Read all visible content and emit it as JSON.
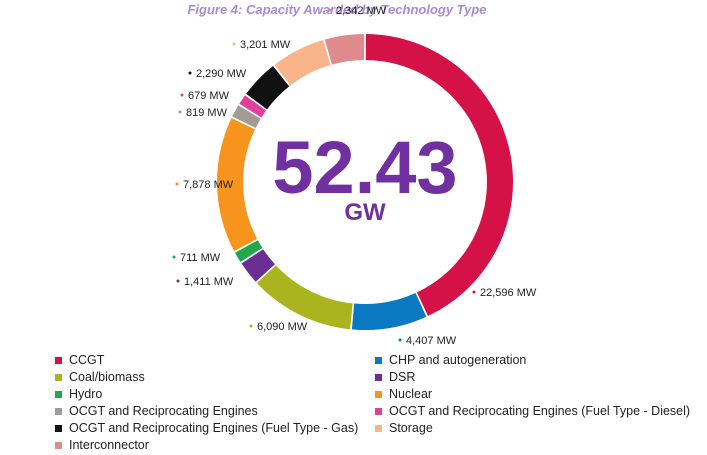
{
  "chart_data": {
    "type": "pie",
    "title": "Figure 4: Capacity Awarded by Technology Type",
    "center_value": "52.43",
    "center_unit": "GW",
    "series": [
      {
        "name": "CCGT",
        "value": 22596,
        "label": "22,596 MW",
        "color": "#d41247"
      },
      {
        "name": "CHP and autogeneration",
        "value": 4407,
        "label": "4,407 MW",
        "color": "#0a78c2"
      },
      {
        "name": "Coal/biomass",
        "value": 6090,
        "label": "6,090 MW",
        "color": "#aab41f"
      },
      {
        "name": "DSR",
        "value": 1411,
        "label": "1,411 MW",
        "color": "#6a2f92"
      },
      {
        "name": "Hydro",
        "value": 711,
        "label": "711 MW",
        "color": "#21a84b"
      },
      {
        "name": "Nuclear",
        "value": 7878,
        "label": "7,878 MW",
        "color": "#f7941d"
      },
      {
        "name": "OCGT and Reciprocating Engines",
        "value": 819,
        "label": "819 MW",
        "color": "#a39a93"
      },
      {
        "name": "OCGT and Reciprocating Engines (Fuel Type - Diesel)",
        "value": 679,
        "label": "679 MW",
        "color": "#e0409a"
      },
      {
        "name": "OCGT and Reciprocating Engines (Fuel Type - Gas)",
        "value": 2290,
        "label": "2,290 MW",
        "color": "#111111"
      },
      {
        "name": "Storage",
        "value": 3201,
        "label": "3,201 MW",
        "color": "#f9b48a"
      },
      {
        "name": "Interconnector",
        "value": 2342,
        "label": "2,342 MW",
        "color": "#df8b8e"
      }
    ],
    "legend_position": "bottom"
  }
}
